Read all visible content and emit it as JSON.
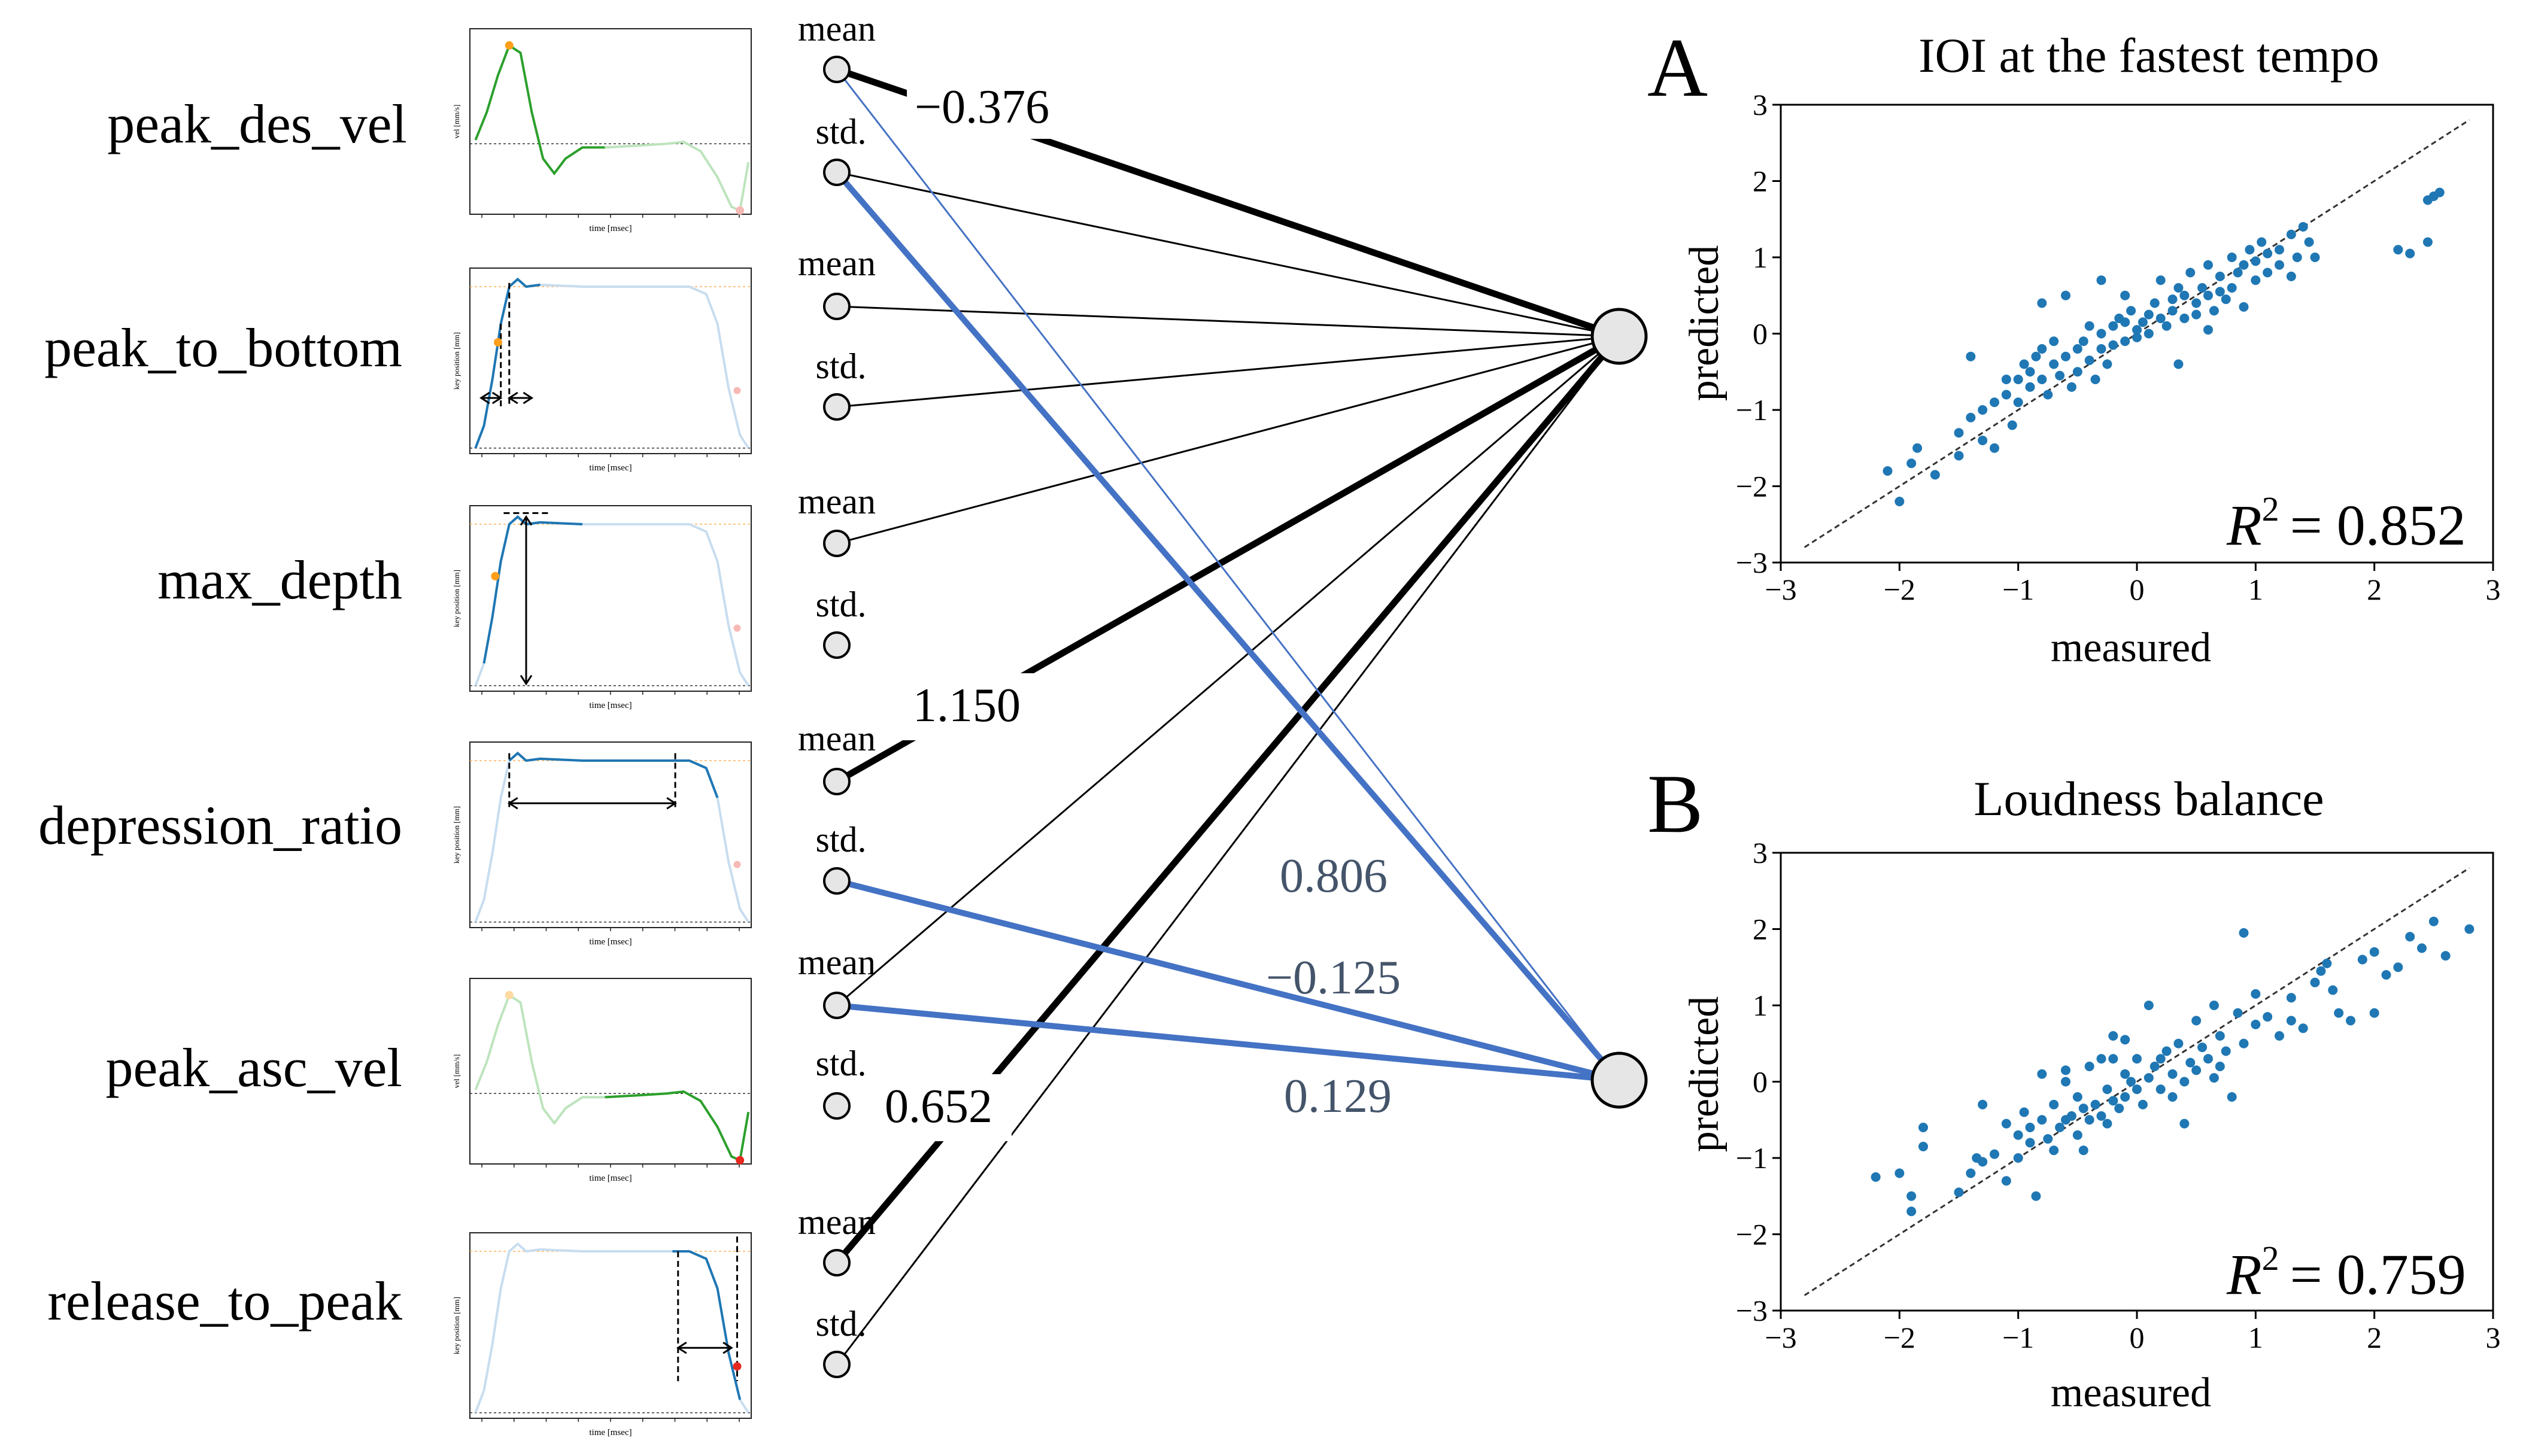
{
  "features": [
    {
      "label": "peak_des_vel",
      "ylabel": "vel [mm/s]"
    },
    {
      "label": "peak_to_bottom",
      "ylabel": "key position [mm]"
    },
    {
      "label": "max_depth",
      "ylabel": "key position [mm]"
    },
    {
      "label": "depression_ratio",
      "ylabel": "key position [mm]"
    },
    {
      "label": "peak_asc_vel",
      "ylabel": "vel [mm/s]"
    },
    {
      "label": "release_to_peak",
      "ylabel": "key position [mm]"
    }
  ],
  "thumb_xlabel": "time [msec]",
  "stat_labels": {
    "mean": "mean",
    "std": "std."
  },
  "weights": {
    "w1": "−0.376",
    "w2": "1.150",
    "w3": "0.652",
    "w4": "0.806",
    "w5": "−0.125",
    "w6": "0.129"
  },
  "panels": [
    {
      "letter": "A",
      "title": "IOI at the fastest tempo",
      "xlabel": "measured",
      "ylabel": "predicted",
      "r2_value": "= 0.852",
      "seed": 11
    },
    {
      "letter": "B",
      "title": "Loudness balance",
      "xlabel": "measured",
      "ylabel": "predicted",
      "r2_value": "= 0.759",
      "seed": 29
    }
  ],
  "r2_symbol": "R",
  "r2_sup": "2",
  "colors": {
    "black": "#000000",
    "blue": "#4472c4",
    "scatter": "#1f77b4",
    "green": "#2ca02c",
    "orange": "#ff9f1a",
    "node": "#e6e6e6",
    "weight_gray": "#44546a"
  },
  "chart_data": [
    {
      "type": "scatter",
      "title": "IOI at the fastest tempo",
      "xlabel": "measured",
      "ylabel": "predicted",
      "xlim": [
        -3,
        3
      ],
      "ylim": [
        -3,
        3
      ],
      "xticks": [
        -3,
        -2,
        -1,
        0,
        1,
        2,
        3
      ],
      "yticks": [
        -3,
        -2,
        -1,
        0,
        1,
        2,
        3
      ],
      "xtick_labels": [
        "−3",
        "−2",
        "−1",
        "0",
        "1",
        "2",
        "3"
      ],
      "ytick_labels": [
        "−3",
        "−2",
        "−1",
        "0",
        "1",
        "2",
        "3"
      ],
      "r2": 0.852,
      "diagonal": [
        [
          -2.8,
          -2.8
        ],
        [
          2.8,
          2.8
        ]
      ],
      "points": [
        [
          -2.1,
          -1.8
        ],
        [
          -2.0,
          -2.2
        ],
        [
          -1.9,
          -1.7
        ],
        [
          -1.85,
          -1.5
        ],
        [
          -1.7,
          -1.85
        ],
        [
          -1.5,
          -1.6
        ],
        [
          -1.5,
          -1.3
        ],
        [
          -1.4,
          -1.1
        ],
        [
          -1.3,
          -1.0
        ],
        [
          -1.3,
          -1.4
        ],
        [
          -1.2,
          -0.9
        ],
        [
          -1.2,
          -1.5
        ],
        [
          -1.1,
          -0.8
        ],
        [
          -1.1,
          -0.6
        ],
        [
          -1.05,
          -1.2
        ],
        [
          -1.0,
          -0.6
        ],
        [
          -1.0,
          -0.9
        ],
        [
          -0.95,
          -0.4
        ],
        [
          -0.9,
          -0.5
        ],
        [
          -0.9,
          -0.7
        ],
        [
          -0.85,
          -0.3
        ],
        [
          -0.8,
          -0.6
        ],
        [
          -0.8,
          -0.2
        ],
        [
          -0.75,
          -0.8
        ],
        [
          -0.7,
          -0.4
        ],
        [
          -0.7,
          -0.1
        ],
        [
          -0.65,
          -0.55
        ],
        [
          -0.6,
          -0.3
        ],
        [
          -0.6,
          0.5
        ],
        [
          -0.55,
          -0.7
        ],
        [
          -0.5,
          -0.2
        ],
        [
          -0.5,
          -0.5
        ],
        [
          -0.45,
          -0.1
        ],
        [
          -0.4,
          -0.35
        ],
        [
          -0.4,
          0.1
        ],
        [
          -0.35,
          -0.6
        ],
        [
          -0.3,
          -0.2
        ],
        [
          -0.3,
          0.0
        ],
        [
          -0.25,
          -0.4
        ],
        [
          -0.2,
          0.1
        ],
        [
          -0.2,
          -0.15
        ],
        [
          -0.15,
          0.2
        ],
        [
          -0.1,
          -0.1
        ],
        [
          -0.1,
          0.15
        ],
        [
          -0.05,
          0.3
        ],
        [
          0.0,
          0.05
        ],
        [
          0.0,
          -0.05
        ],
        [
          0.05,
          0.15
        ],
        [
          0.1,
          0.25
        ],
        [
          0.1,
          0.0
        ],
        [
          0.15,
          0.4
        ],
        [
          0.2,
          0.2
        ],
        [
          0.2,
          0.7
        ],
        [
          0.25,
          0.1
        ],
        [
          0.3,
          0.45
        ],
        [
          0.3,
          0.3
        ],
        [
          0.35,
          0.6
        ],
        [
          0.4,
          0.2
        ],
        [
          0.4,
          0.5
        ],
        [
          0.45,
          0.8
        ],
        [
          0.5,
          0.4
        ],
        [
          0.5,
          0.25
        ],
        [
          0.55,
          0.6
        ],
        [
          0.6,
          0.5
        ],
        [
          0.6,
          0.9
        ],
        [
          0.65,
          0.3
        ],
        [
          0.7,
          0.55
        ],
        [
          0.7,
          0.75
        ],
        [
          0.75,
          0.45
        ],
        [
          0.8,
          1.0
        ],
        [
          0.8,
          0.6
        ],
        [
          0.85,
          0.8
        ],
        [
          0.9,
          0.35
        ],
        [
          0.9,
          0.9
        ],
        [
          0.95,
          1.1
        ],
        [
          1.0,
          0.7
        ],
        [
          1.0,
          0.95
        ],
        [
          1.05,
          1.2
        ],
        [
          1.1,
          0.8
        ],
        [
          1.1,
          1.05
        ],
        [
          1.2,
          0.9
        ],
        [
          1.2,
          1.1
        ],
        [
          1.3,
          0.75
        ],
        [
          1.35,
          1.0
        ],
        [
          1.4,
          1.4
        ],
        [
          1.45,
          1.2
        ],
        [
          1.5,
          1.0
        ],
        [
          -0.3,
          0.7
        ],
        [
          -0.8,
          0.4
        ],
        [
          0.35,
          -0.4
        ],
        [
          -1.4,
          -0.3
        ],
        [
          2.2,
          1.1
        ],
        [
          2.3,
          1.05
        ],
        [
          2.45,
          1.2
        ],
        [
          2.5,
          1.8
        ],
        [
          2.55,
          1.85
        ],
        [
          2.45,
          1.75
        ],
        [
          -0.1,
          0.5
        ],
        [
          0.6,
          0.05
        ],
        [
          1.3,
          1.3
        ]
      ]
    },
    {
      "type": "scatter",
      "title": "Loudness balance",
      "xlabel": "measured",
      "ylabel": "predicted",
      "xlim": [
        -3,
        3
      ],
      "ylim": [
        -3,
        3
      ],
      "xticks": [
        -3,
        -2,
        -1,
        0,
        1,
        2,
        3
      ],
      "yticks": [
        -3,
        -2,
        -1,
        0,
        1,
        2,
        3
      ],
      "xtick_labels": [
        "−3",
        "−2",
        "−1",
        "0",
        "1",
        "2",
        "3"
      ],
      "ytick_labels": [
        "−3",
        "−2",
        "−1",
        "0",
        "1",
        "2",
        "3"
      ],
      "r2": 0.759,
      "diagonal": [
        [
          -2.8,
          -2.8
        ],
        [
          2.8,
          2.8
        ]
      ],
      "points": [
        [
          -2.2,
          -1.25
        ],
        [
          -2.0,
          -1.2
        ],
        [
          -1.9,
          -1.7
        ],
        [
          -1.8,
          -0.85
        ],
        [
          -1.8,
          -0.6
        ],
        [
          -1.9,
          -1.5
        ],
        [
          -1.5,
          -1.45
        ],
        [
          -1.4,
          -1.2
        ],
        [
          -1.35,
          -1.0
        ],
        [
          -1.3,
          -1.05
        ],
        [
          -1.2,
          -0.95
        ],
        [
          -1.1,
          -1.3
        ],
        [
          -1.0,
          -0.7
        ],
        [
          -1.0,
          -1.0
        ],
        [
          -0.95,
          -0.4
        ],
        [
          -0.9,
          -0.8
        ],
        [
          -0.9,
          -0.6
        ],
        [
          -0.85,
          -1.5
        ],
        [
          -0.8,
          -0.5
        ],
        [
          -0.75,
          -0.75
        ],
        [
          -0.7,
          -0.3
        ],
        [
          -0.7,
          -0.9
        ],
        [
          -0.65,
          -0.6
        ],
        [
          -0.6,
          -0.5
        ],
        [
          -0.6,
          0.0
        ],
        [
          -0.55,
          -0.45
        ],
        [
          -0.5,
          -0.2
        ],
        [
          -0.5,
          -0.7
        ],
        [
          -0.45,
          -0.35
        ],
        [
          -0.4,
          -0.5
        ],
        [
          -0.4,
          0.2
        ],
        [
          -0.35,
          -0.3
        ],
        [
          -0.3,
          -0.45
        ],
        [
          -0.3,
          0.3
        ],
        [
          -0.25,
          -0.1
        ],
        [
          -0.2,
          -0.25
        ],
        [
          -0.2,
          0.6
        ],
        [
          -0.15,
          -0.35
        ],
        [
          -0.1,
          0.1
        ],
        [
          -0.1,
          -0.2
        ],
        [
          -0.05,
          0.0
        ],
        [
          0.0,
          -0.1
        ],
        [
          0.0,
          0.3
        ],
        [
          0.05,
          -0.3
        ],
        [
          0.1,
          0.05
        ],
        [
          0.15,
          0.2
        ],
        [
          0.2,
          -0.1
        ],
        [
          0.25,
          0.4
        ],
        [
          0.3,
          0.1
        ],
        [
          0.3,
          -0.2
        ],
        [
          0.35,
          0.5
        ],
        [
          0.4,
          0.0
        ],
        [
          0.45,
          0.25
        ],
        [
          0.5,
          0.15
        ],
        [
          0.5,
          0.8
        ],
        [
          0.55,
          0.45
        ],
        [
          0.6,
          0.3
        ],
        [
          0.65,
          0.05
        ],
        [
          0.7,
          0.6
        ],
        [
          0.75,
          0.4
        ],
        [
          0.8,
          -0.2
        ],
        [
          0.85,
          0.9
        ],
        [
          0.9,
          0.5
        ],
        [
          1.0,
          0.75
        ],
        [
          1.1,
          0.85
        ],
        [
          1.2,
          0.6
        ],
        [
          1.3,
          1.1
        ],
        [
          1.4,
          0.7
        ],
        [
          1.5,
          1.3
        ],
        [
          1.6,
          1.55
        ],
        [
          1.65,
          1.2
        ],
        [
          1.7,
          0.9
        ],
        [
          1.8,
          0.8
        ],
        [
          1.9,
          1.6
        ],
        [
          2.0,
          1.7
        ],
        [
          2.1,
          1.4
        ],
        [
          2.2,
          1.5
        ],
        [
          2.3,
          1.9
        ],
        [
          2.4,
          1.75
        ],
        [
          2.5,
          2.1
        ],
        [
          2.6,
          1.65
        ],
        [
          2.8,
          2.0
        ],
        [
          -0.2,
          0.3
        ],
        [
          0.1,
          1.0
        ],
        [
          -0.6,
          0.15
        ],
        [
          0.9,
          1.95
        ],
        [
          1.3,
          0.8
        ],
        [
          -1.3,
          -0.3
        ],
        [
          0.4,
          -0.55
        ],
        [
          -0.8,
          0.1
        ],
        [
          1.55,
          1.45
        ],
        [
          -0.45,
          -0.9
        ],
        [
          0.65,
          1.0
        ],
        [
          -0.1,
          0.55
        ],
        [
          0.2,
          0.3
        ],
        [
          -1.1,
          -0.55
        ],
        [
          1.0,
          1.15
        ],
        [
          2.0,
          0.9
        ],
        [
          -0.25,
          -0.55
        ],
        [
          0.7,
          0.2
        ]
      ]
    }
  ]
}
